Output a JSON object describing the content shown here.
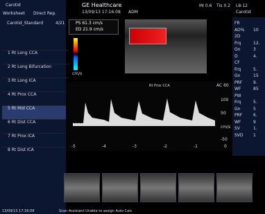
{
  "header": {
    "app": "Carotid",
    "brand": "GE Healthcare",
    "datetime": "13/09/13 17:16:08",
    "user": "ADM",
    "mi": "MI 0.6",
    "tis": "TIs 0.2",
    "probe": "L8-12",
    "preset": "Carotid"
  },
  "worksheet": {
    "tabs": [
      "Worksheet",
      "Direct Rep."
    ],
    "protocol": "Carotid_Standard",
    "progress": "4/21",
    "items": [
      "1 Rt Long CCA",
      "2 Rt Long Bifurcation",
      "3 Rt Long ICA",
      "4 Rt Prox CCA",
      "5 Rt Mid CCA",
      "6 Rt Dist CCA",
      "7 Rt Prox ICA",
      "8 Rt Dist ICA"
    ]
  },
  "measurements": [
    "PS 61.3 cm/s",
    "ED 21.9 cm/s"
  ],
  "color_bar_unit": "cm/s",
  "doppler": {
    "label": "Rt Prox CCA",
    "ac": "AC 60",
    "scale": [
      "100",
      "50",
      "-50"
    ],
    "unit": "cm/s",
    "time": [
      "-5",
      "-4",
      "-3",
      "-2",
      "-1",
      "0"
    ]
  },
  "params": [
    [
      "FR",
      ""
    ],
    [
      "AO%",
      "10"
    ],
    [
      "2D",
      ""
    ],
    [
      "Frq",
      "12."
    ],
    [
      "Gn",
      "3"
    ],
    [
      "D",
      "4."
    ],
    [
      "CF",
      ""
    ],
    [
      "Frq",
      "5."
    ],
    [
      "Gn",
      "15"
    ],
    [
      "PRF",
      "9."
    ],
    [
      "WF",
      "85"
    ],
    [
      "PW",
      ""
    ],
    [
      "Frq",
      "5."
    ],
    [
      "Gn",
      "5"
    ],
    [
      "PRF",
      "6."
    ],
    [
      "WF",
      "9"
    ],
    [
      "SV",
      "1."
    ],
    [
      "SVD",
      "1"
    ]
  ],
  "status": "Scan Assistant Unable to assign Auto Calc"
}
